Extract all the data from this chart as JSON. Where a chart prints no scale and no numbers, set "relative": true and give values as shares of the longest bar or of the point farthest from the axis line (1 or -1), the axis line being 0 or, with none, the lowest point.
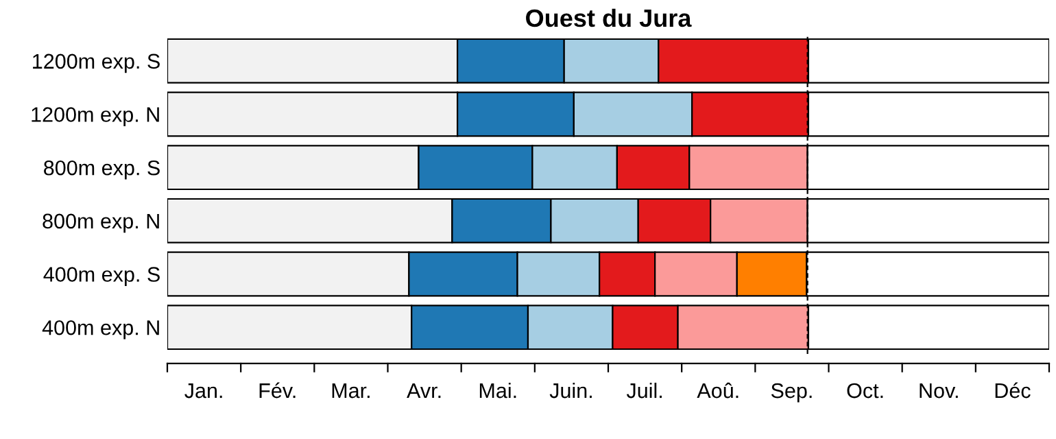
{
  "chart_data": {
    "type": "bar",
    "orientation": "horizontal",
    "stacked": true,
    "relative": true,
    "title": "Ouest du Jura",
    "categories": [
      "1200m exp. S",
      "1200m exp. N",
      "800m exp. S",
      "800m exp. N",
      "400m exp. S",
      "400m exp. N"
    ],
    "series": [
      {
        "color": "#f2f2f2",
        "values": [
          0.329,
          0.329,
          0.285,
          0.323,
          0.274,
          0.277
        ]
      },
      {
        "color": "#1f78b4",
        "values": [
          0.121,
          0.132,
          0.129,
          0.112,
          0.123,
          0.132
        ]
      },
      {
        "color": "#a6cee3",
        "values": [
          0.107,
          0.134,
          0.096,
          0.099,
          0.093,
          0.096
        ]
      },
      {
        "color": "#e31a1c",
        "values": [
          0.17,
          0.132,
          0.082,
          0.082,
          0.063,
          0.074
        ]
      },
      {
        "color": "#fb9a99",
        "values": [
          null,
          null,
          0.134,
          0.11,
          0.093,
          0.148
        ]
      },
      {
        "color": "#ff7f00",
        "values": [
          null,
          null,
          null,
          null,
          0.079,
          null
        ]
      },
      {
        "color": "#ffffff",
        "values": [
          0.273,
          0.273,
          0.274,
          0.274,
          0.275,
          0.273
        ]
      }
    ],
    "annotations": [
      "Jan.",
      "Fév.",
      "Mar.",
      "Avr.",
      "Mai.",
      "Juin.",
      "Juil.",
      "Aoû.",
      "Sep.",
      "Oct.",
      "Nov.",
      "Déc"
    ],
    "ref_lines": [
      {
        "axis": "x",
        "value": 0.726,
        "line_style": "dashed",
        "color": "#000000"
      }
    ],
    "grid": false,
    "legend": false
  }
}
